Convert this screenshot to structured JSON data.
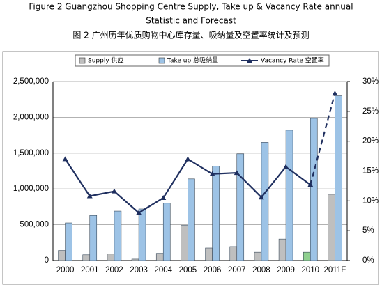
{
  "chart_data": {
    "type": "bar_line",
    "title": "Figure 2 Guangzhou Shopping Centre Supply, Take up & Vacancy Rate annual",
    "title_line2": "Statistic and Forecast",
    "subtitle": "图 2 广州历年优质购物中心库存量、吸纳量及空置率统计及预测",
    "categories": [
      "2000",
      "2001",
      "2002",
      "2003",
      "2004",
      "2005",
      "2006",
      "2007",
      "2008",
      "2009",
      "2010",
      "2011F"
    ],
    "series": [
      {
        "name": "Supply 供应",
        "type": "bar",
        "color": "#bfbfbf",
        "colors": [
          "#bfbfbf",
          "#bfbfbf",
          "#bfbfbf",
          "#bfbfbf",
          "#bfbfbf",
          "#bfbfbf",
          "#bfbfbf",
          "#bfbfbf",
          "#bfbfbf",
          "#bfbfbf",
          "#8fd08f",
          "#bfbfbf"
        ],
        "values": [
          140000,
          80000,
          90000,
          20000,
          100000,
          490000,
          175000,
          195000,
          115000,
          300000,
          115000,
          925000
        ]
      },
      {
        "name": "Take up 总吸纳量",
        "type": "bar",
        "color": "#9dc3e6",
        "values": [
          525000,
          630000,
          690000,
          720000,
          800000,
          1140000,
          1320000,
          1490000,
          1650000,
          1820000,
          1985000,
          2300000
        ]
      },
      {
        "name": "Vacancy Rate 空置率",
        "type": "line",
        "axis": "y2",
        "color": "#1f2f5f",
        "dashed_from_index": 10,
        "values": [
          17,
          10.8,
          11.6,
          8,
          10.5,
          17,
          14.5,
          14.7,
          10.6,
          15.7,
          12.7,
          28
        ]
      }
    ],
    "ylim": [
      0,
      2500000
    ],
    "yticks": [
      0,
      {
        "value": 500000,
        "label": "500,000"
      },
      {
        "value": 1000000,
        "label": "1,000,000"
      },
      {
        "value": 1500000,
        "label": "1,500,000"
      },
      {
        "value": 2000000,
        "label": "2,000,000"
      },
      {
        "value": 2500000,
        "label": "2,500,000"
      }
    ],
    "y2lim": [
      0,
      30
    ],
    "y2ticks": [
      {
        "value": 0,
        "label": "0%"
      },
      {
        "value": 5,
        "label": "5%"
      },
      {
        "value": 10,
        "label": "10%"
      },
      {
        "value": 15,
        "label": "15%"
      },
      {
        "value": 20,
        "label": "20%"
      },
      {
        "value": 25,
        "label": "25%"
      },
      {
        "value": 30,
        "label": "30%"
      }
    ],
    "grid": true
  }
}
